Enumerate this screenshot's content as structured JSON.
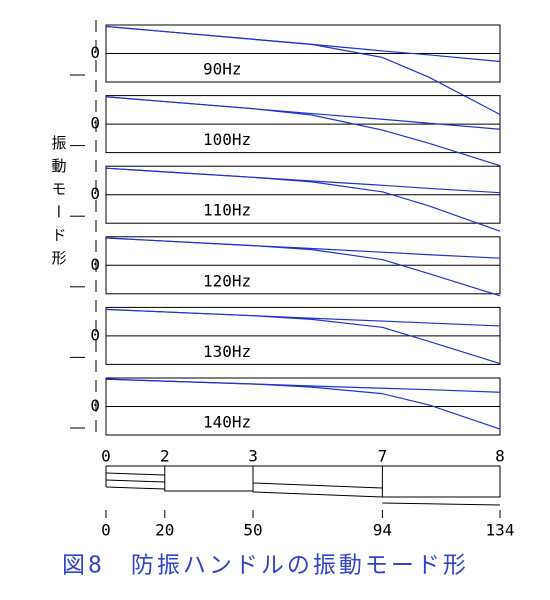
{
  "ylabel": "振動モード形",
  "caption": "図8　防振ハンドルの振動モード形",
  "chart_data": [
    {
      "type": "line",
      "title": "90Hz",
      "x": [
        0,
        20,
        50,
        70,
        94,
        110,
        134
      ],
      "xlim": [
        0,
        134
      ],
      "ylim": [
        -1,
        1
      ],
      "yticks": [
        0
      ],
      "series": [
        {
          "color": "#2233cc",
          "values": [
            0.95,
            0.77,
            0.5,
            0.32,
            0.09,
            -0.05,
            -0.28
          ]
        },
        {
          "color": "#2233cc",
          "values": [
            0.95,
            0.77,
            0.5,
            0.32,
            -0.14,
            -0.84,
            -2.14
          ]
        }
      ]
    },
    {
      "type": "line",
      "title": "100Hz",
      "x": [
        0,
        20,
        50,
        70,
        94,
        110,
        134
      ],
      "xlim": [
        0,
        134
      ],
      "ylim": [
        -1,
        1
      ],
      "yticks": [
        0
      ],
      "series": [
        {
          "color": "#2233cc",
          "values": [
            0.96,
            0.79,
            0.54,
            0.37,
            0.17,
            0.03,
            -0.18
          ]
        },
        {
          "color": "#2233cc",
          "values": [
            0.96,
            0.79,
            0.54,
            0.32,
            -0.21,
            -0.68,
            -1.46
          ]
        }
      ]
    },
    {
      "type": "line",
      "title": "110Hz",
      "x": [
        0,
        20,
        50,
        70,
        94,
        110,
        134
      ],
      "xlim": [
        0,
        134
      ],
      "ylim": [
        -1,
        1
      ],
      "yticks": [
        0
      ],
      "series": [
        {
          "color": "#2233cc",
          "values": [
            0.93,
            0.8,
            0.61,
            0.48,
            0.33,
            0.22,
            0.07
          ]
        },
        {
          "color": "#2233cc",
          "values": [
            0.93,
            0.8,
            0.61,
            0.45,
            0.1,
            -0.4,
            -1.28
          ]
        }
      ]
    },
    {
      "type": "line",
      "title": "120Hz",
      "x": [
        0,
        20,
        50,
        70,
        94,
        110,
        134
      ],
      "xlim": [
        0,
        134
      ],
      "ylim": [
        -1,
        1
      ],
      "yticks": [
        0
      ],
      "series": [
        {
          "color": "#2233cc",
          "values": [
            0.96,
            0.85,
            0.69,
            0.59,
            0.46,
            0.37,
            0.25
          ]
        },
        {
          "color": "#2233cc",
          "values": [
            0.96,
            0.85,
            0.69,
            0.55,
            0.2,
            -0.3,
            -1.07
          ]
        }
      ]
    },
    {
      "type": "line",
      "title": "130Hz",
      "x": [
        0,
        20,
        50,
        70,
        94,
        110,
        134
      ],
      "xlim": [
        0,
        134
      ],
      "ylim": [
        -1,
        1
      ],
      "yticks": [
        0
      ],
      "series": [
        {
          "color": "#2233cc",
          "values": [
            0.93,
            0.84,
            0.71,
            0.62,
            0.52,
            0.45,
            0.35
          ]
        },
        {
          "color": "#2233cc",
          "values": [
            0.93,
            0.84,
            0.71,
            0.58,
            0.3,
            -0.2,
            -0.97
          ]
        }
      ]
    },
    {
      "type": "line",
      "title": "140Hz",
      "x": [
        0,
        20,
        50,
        70,
        94,
        110,
        134
      ],
      "xlim": [
        0,
        134
      ],
      "ylim": [
        -1,
        1
      ],
      "yticks": [
        0
      ],
      "series": [
        {
          "color": "#2233cc",
          "values": [
            0.96,
            0.89,
            0.79,
            0.72,
            0.64,
            0.59,
            0.5
          ]
        },
        {
          "color": "#2233cc",
          "values": [
            0.96,
            0.89,
            0.79,
            0.68,
            0.45,
            0.05,
            -0.79
          ]
        }
      ]
    }
  ],
  "handle": {
    "node_labels": [
      "0",
      "2",
      "3",
      "7",
      "8"
    ],
    "xticks": [
      0,
      20,
      50,
      94,
      134
    ],
    "xlim": [
      0,
      134
    ]
  }
}
